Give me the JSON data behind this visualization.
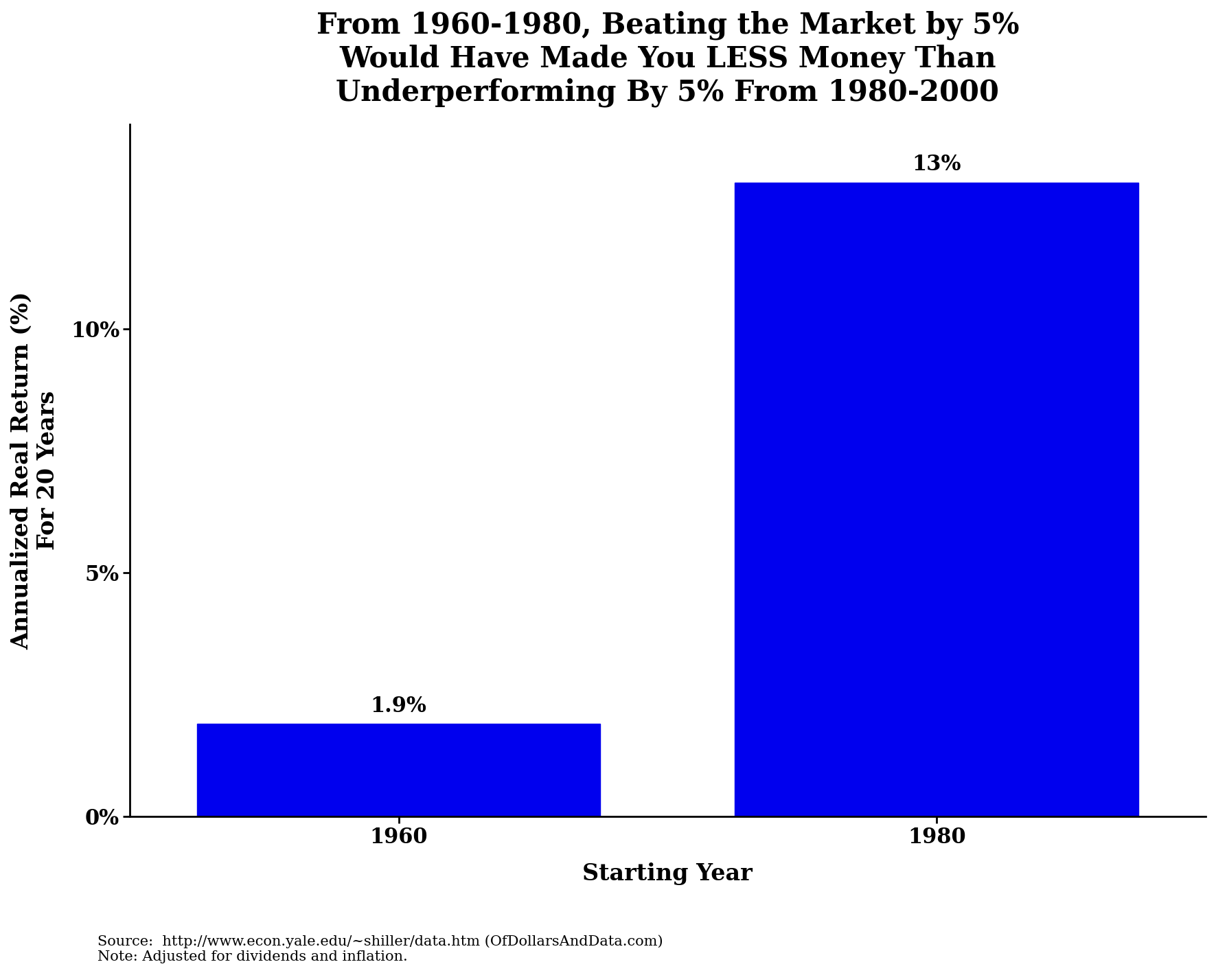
{
  "title": "From 1960-1980, Beating the Market by 5%\nWould Have Made You LESS Money Than\nUnderperforming By 5% From 1980-2000",
  "categories": [
    "1960",
    "1980"
  ],
  "values": [
    1.9,
    13.0
  ],
  "bar_labels": [
    "1.9%",
    "13%"
  ],
  "bar_color": "#0000ee",
  "ylabel_line1": "Annualized Real Return (%)",
  "ylabel_line2": "For 20 Years",
  "xlabel": "Starting Year",
  "ylim": [
    0,
    14.2
  ],
  "yticks": [
    0,
    5,
    10
  ],
  "yticklabels": [
    "0%",
    "5%",
    "10%"
  ],
  "source_text": "Source:  http://www.econ.yale.edu/~shiller/data.htm (OfDollarsAndData.com)\nNote: Adjusted for dividends and inflation.",
  "title_fontsize": 30,
  "axis_label_fontsize": 24,
  "tick_fontsize": 22,
  "bar_label_fontsize": 22,
  "source_fontsize": 15,
  "background_color": "#ffffff"
}
